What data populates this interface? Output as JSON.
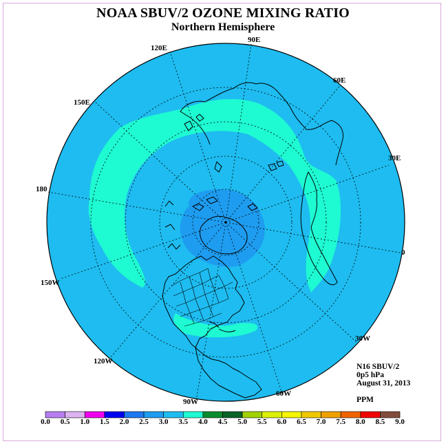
{
  "title": "NOAA SBUV/2 OZONE MIXING RATIO",
  "subtitle": "Northern Hemisphere",
  "info": {
    "satellite": "N16 SBUV/2",
    "level": "0p5 hPa",
    "date": "August 31, 2013",
    "units": "PPM"
  },
  "longitude_labels": [
    "90E",
    "60E",
    "30E",
    "0",
    "30W",
    "60W",
    "90W",
    "120W",
    "150W",
    "180",
    "150E",
    "120E"
  ],
  "colorbar": {
    "ticks": [
      "0.0",
      "0.5",
      "1.0",
      "1.5",
      "2.0",
      "2.5",
      "3.0",
      "3.5",
      "4.0",
      "4.5",
      "5.0",
      "5.5",
      "6.0",
      "6.5",
      "7.0",
      "7.5",
      "8.0",
      "8.5",
      "9.0"
    ],
    "colors": [
      "#b67ef0",
      "#dcb2f0",
      "#ee00ee",
      "#0000f0",
      "#1e78f0",
      "#1e9cf0",
      "#1ebcf0",
      "#1efad2",
      "#0a8c2e",
      "#0a6428",
      "#a0d200",
      "#dcf000",
      "#f5f500",
      "#f0c800",
      "#f0a000",
      "#f06400",
      "#f00000",
      "#824c3c"
    ]
  },
  "field_colors": {
    "background": "#1ebcf0",
    "band": "#1efad2",
    "pole": "#1e9cf0"
  }
}
